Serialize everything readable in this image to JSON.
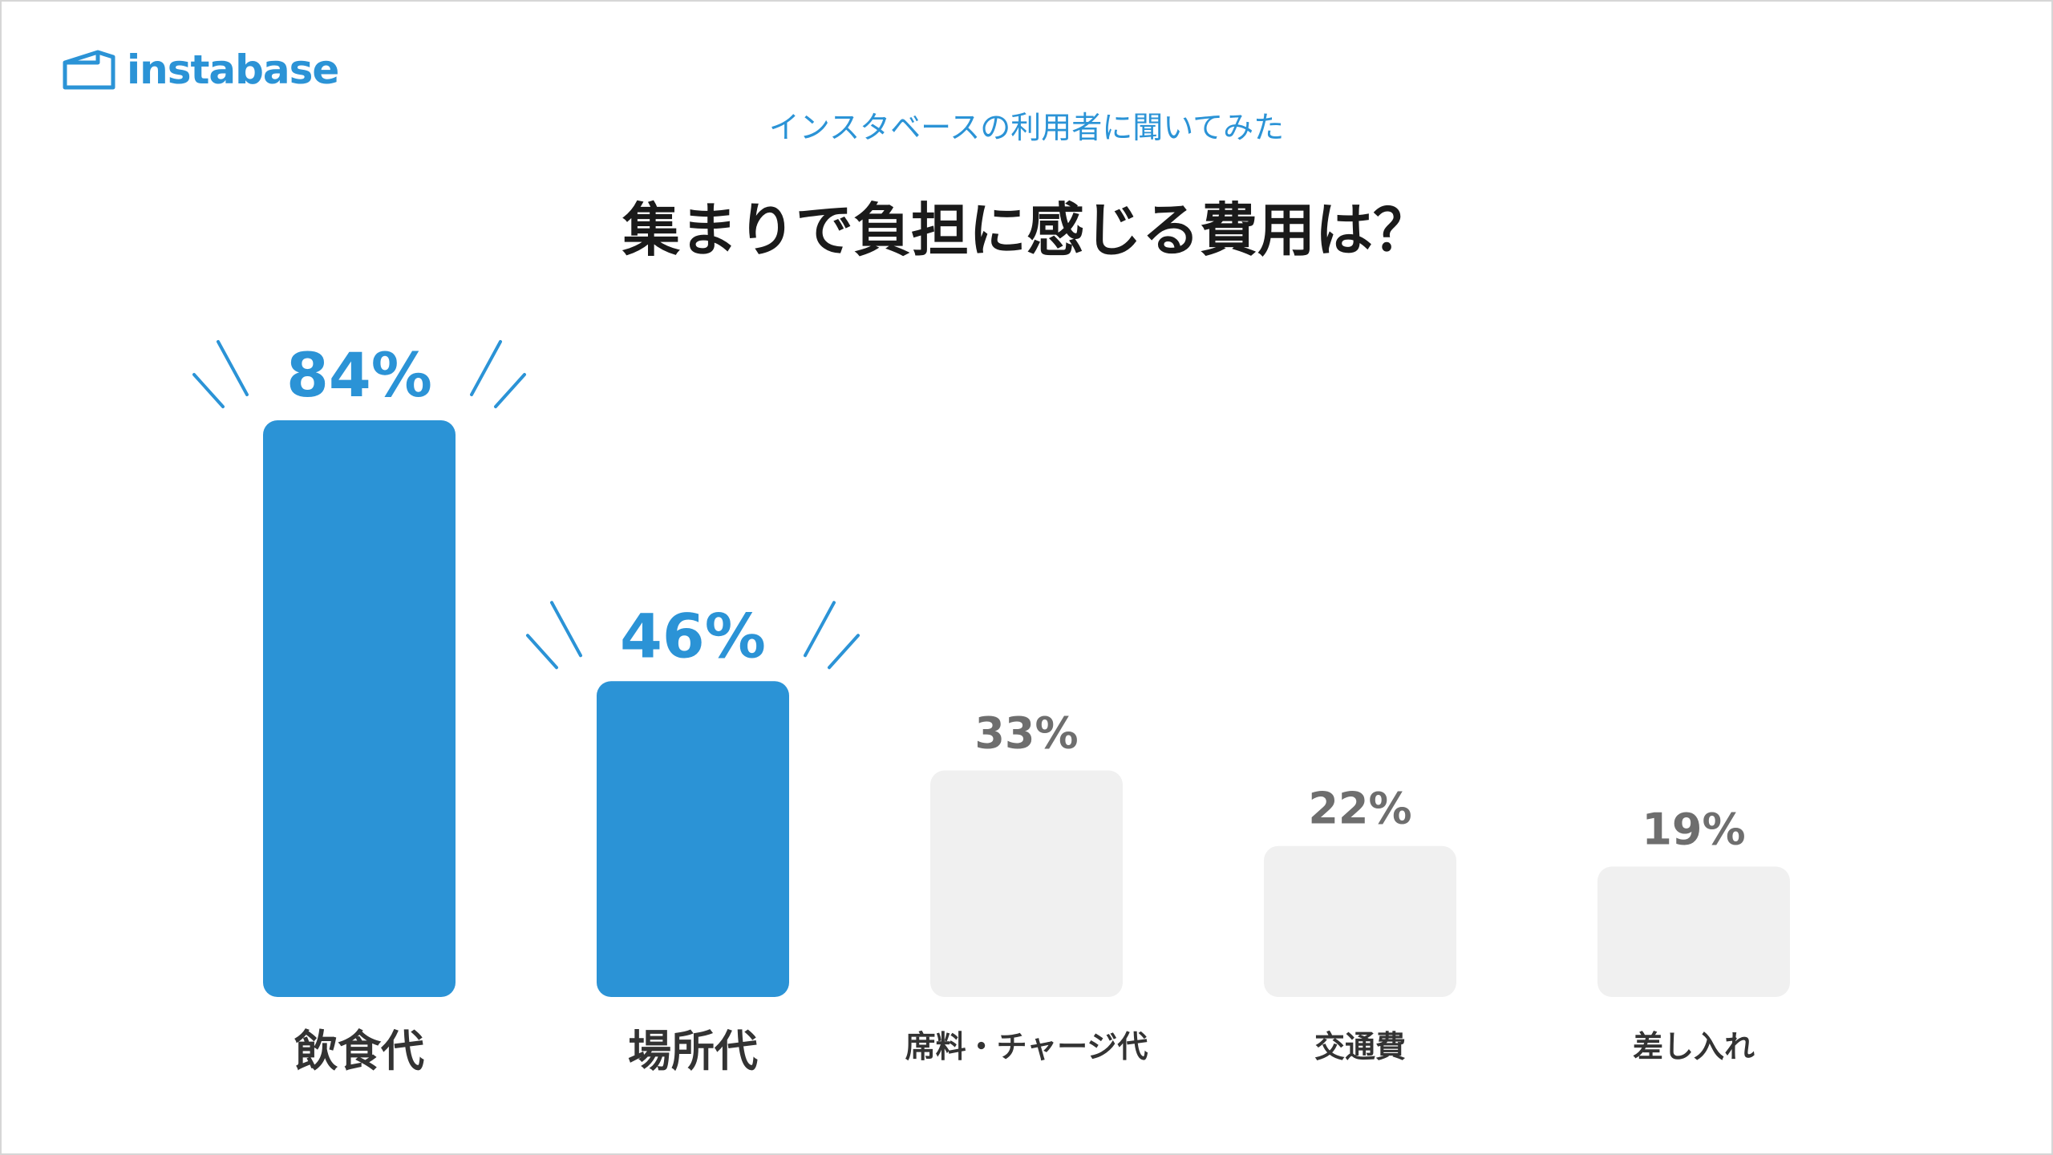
{
  "brand": {
    "logo_text": "instabase",
    "logo_icon": "house-outline-icon",
    "color": "#2b93d6"
  },
  "header": {
    "subtitle": "インスタベースの利用者に聞いてみた",
    "title": "集まりで負担に感じる費用は？"
  },
  "colors": {
    "highlight": "#2b93d6",
    "muted_bar": "#f0f0f0",
    "muted_value": "#6e6e6e",
    "category": "#333333"
  },
  "chart_data": {
    "type": "bar",
    "categories": [
      "飲食代",
      "場所代",
      "席料・チャージ代",
      "交通費",
      "差し入れ"
    ],
    "values": [
      84,
      46,
      33,
      22,
      19
    ],
    "labels": [
      "84%",
      "46%",
      "33%",
      "22%",
      "19%"
    ],
    "highlighted": [
      true,
      true,
      false,
      false,
      false
    ],
    "unit": "%",
    "ylim": [
      0,
      84
    ],
    "title": "集まりで負担に感じる費用は？",
    "xlabel": "",
    "ylabel": "",
    "grid": false,
    "legend": "none"
  }
}
